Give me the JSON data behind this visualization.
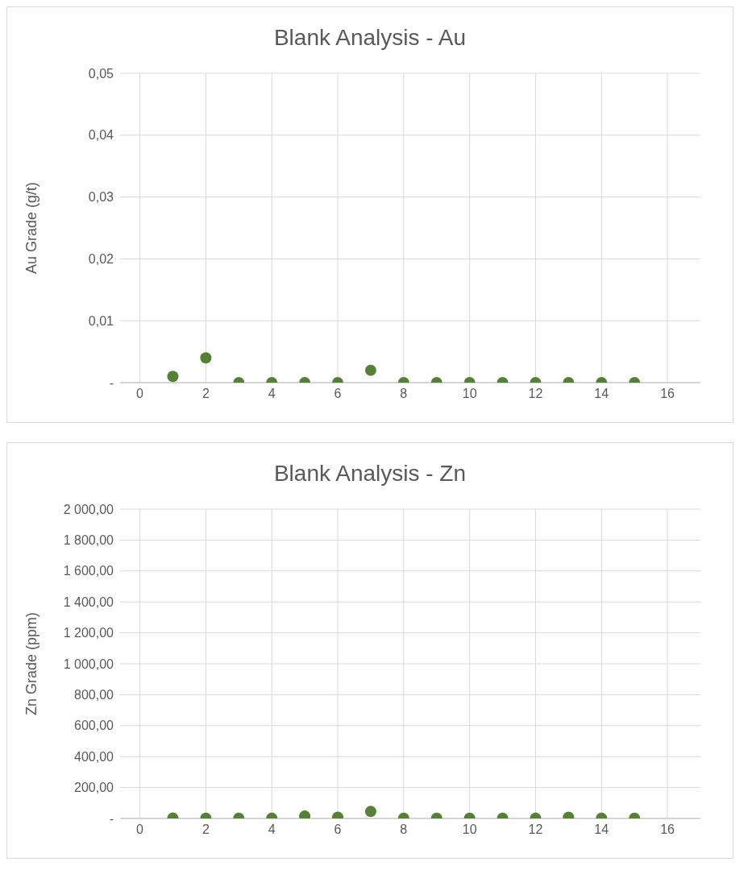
{
  "chart_data": [
    {
      "type": "scatter",
      "title": "Blank Analysis - Au",
      "ylabel": "Au Grade (g/t)",
      "x": [
        1,
        2,
        3,
        4,
        5,
        6,
        7,
        8,
        9,
        10,
        11,
        12,
        13,
        14,
        15
      ],
      "series": [
        {
          "color": "#548235",
          "values": [
            0.001,
            0.004,
            0,
            0,
            0,
            0,
            0.002,
            0,
            0,
            0,
            0,
            0,
            0,
            0,
            0
          ]
        }
      ],
      "xlim": [
        -0.6,
        17
      ],
      "xticks": [
        0,
        2,
        4,
        6,
        8,
        10,
        12,
        14,
        16
      ],
      "ylim": [
        0,
        0.05
      ],
      "yticks": [
        {
          "value": 0,
          "label": "-"
        },
        {
          "value": 0.01,
          "label": "0,01"
        },
        {
          "value": 0.02,
          "label": "0,02"
        },
        {
          "value": 0.03,
          "label": "0,03"
        },
        {
          "value": 0.04,
          "label": "0,04"
        },
        {
          "value": 0.05,
          "label": "0,05"
        }
      ],
      "grid": true,
      "marker": "circle"
    },
    {
      "type": "scatter",
      "title": "Blank Analysis - Zn",
      "ylabel": "Zn Grade (ppm)",
      "x": [
        1,
        2,
        3,
        4,
        5,
        6,
        7,
        8,
        9,
        10,
        11,
        12,
        13,
        14,
        15
      ],
      "series": [
        {
          "color": "#548235",
          "values": [
            2,
            1,
            1,
            1,
            15,
            8,
            45,
            1,
            1,
            1,
            1,
            1,
            8,
            1,
            1
          ]
        }
      ],
      "xlim": [
        -0.6,
        17
      ],
      "xticks": [
        0,
        2,
        4,
        6,
        8,
        10,
        12,
        14,
        16
      ],
      "ylim": [
        0,
        2000
      ],
      "yticks": [
        {
          "value": 0,
          "label": "-"
        },
        {
          "value": 200,
          "label": "200,00"
        },
        {
          "value": 400,
          "label": "400,00"
        },
        {
          "value": 600,
          "label": "600,00"
        },
        {
          "value": 800,
          "label": "800,00"
        },
        {
          "value": 1000,
          "label": "1 000,00"
        },
        {
          "value": 1200,
          "label": "1 200,00"
        },
        {
          "value": 1400,
          "label": "1 400,00"
        },
        {
          "value": 1600,
          "label": "1 600,00"
        },
        {
          "value": 1800,
          "label": "1 800,00"
        },
        {
          "value": 2000,
          "label": "2 000,00"
        }
      ],
      "grid": true,
      "marker": "circle"
    }
  ]
}
